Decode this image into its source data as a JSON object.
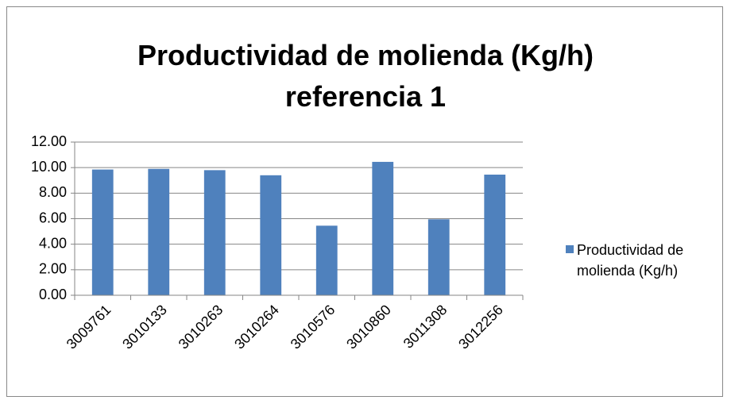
{
  "chart_data": {
    "type": "bar",
    "title": "Productividad de molienda (Kg/h) referencia 1",
    "categories": [
      "3009761",
      "3010133",
      "3010263",
      "3010264",
      "3010576",
      "3010860",
      "3011308",
      "3012256"
    ],
    "series": [
      {
        "name": "Productividad de molienda (Kg/h)",
        "color": "#4f81bd",
        "values": [
          9.85,
          9.9,
          9.8,
          9.4,
          5.45,
          10.45,
          5.95,
          9.45
        ]
      }
    ],
    "ylim": [
      0,
      12
    ],
    "yticks": [
      {
        "value": 0,
        "label": "0.00"
      },
      {
        "value": 2,
        "label": "2.00"
      },
      {
        "value": 4,
        "label": "4.00"
      },
      {
        "value": 6,
        "label": "6.00"
      },
      {
        "value": 8,
        "label": "8.00"
      },
      {
        "value": 10,
        "label": "10.00"
      },
      {
        "value": 12,
        "label": "12.00"
      }
    ],
    "grid": true,
    "legend": "right"
  }
}
